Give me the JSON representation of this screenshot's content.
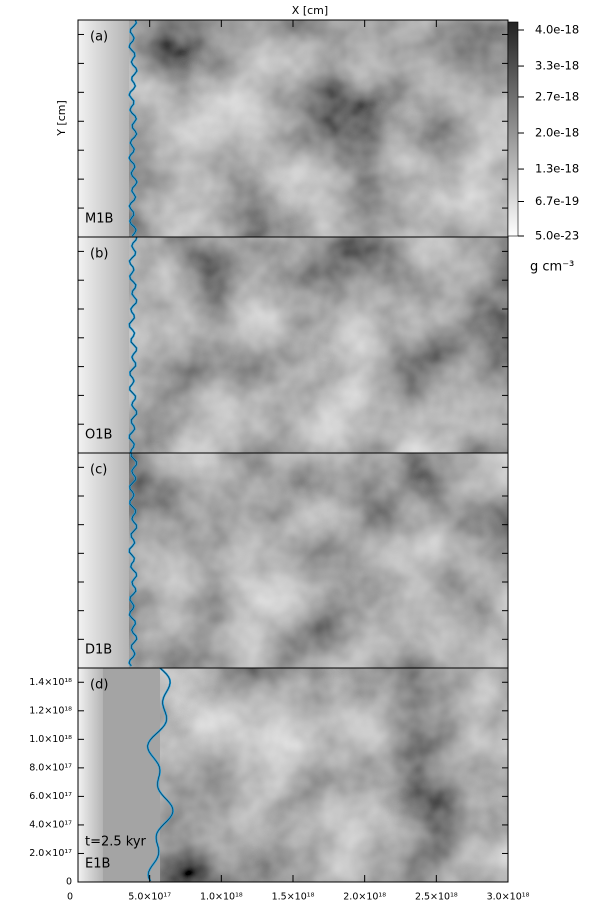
{
  "chart_data": {
    "type": "image",
    "xlabel": "X [cm]",
    "ylabel": "Y [cm]",
    "xlim": [
      0,
      3e+18
    ],
    "xticks": [
      0,
      {
        "value": 5e+17,
        "label": "5.0×10¹⁷"
      },
      {
        "value": 1e+18,
        "label": "1.0×10¹⁸"
      },
      {
        "value": 1.5e+18,
        "label": "1.5×10¹⁸"
      },
      {
        "value": 2e+18,
        "label": "2.0×10¹⁸"
      },
      {
        "value": 2.5e+18,
        "label": "2.5×10¹⁸"
      },
      {
        "value": 3e+18,
        "label": "3.0×10¹⁸"
      }
    ],
    "ylim": [
      0,
      1.5e+18
    ],
    "yticks": [
      0,
      {
        "value": 2e+17,
        "label": "2.0×10¹⁷"
      },
      {
        "value": 4e+17,
        "label": "4.0×10¹⁷"
      },
      {
        "value": 6e+17,
        "label": "6.0×10¹⁷"
      },
      {
        "value": 8e+17,
        "label": "8.0×10¹⁷"
      },
      {
        "value": 1e+18,
        "label": "1.0×10¹⁸"
      },
      {
        "value": 1.2e+18,
        "label": "1.2×10¹⁸"
      },
      {
        "value": 1.4e+18,
        "label": "1.4×10¹⁸"
      }
    ],
    "panels": [
      {
        "label": "(a)",
        "name": "M1B"
      },
      {
        "label": "(b)",
        "name": "O1B"
      },
      {
        "label": "(c)",
        "name": "D1B"
      },
      {
        "label": "(d)",
        "name": "E1B",
        "time": "t=2.5 kyr"
      }
    ],
    "colorbar": {
      "label": "g cm⁻³",
      "lim": [
        5e-23,
        4e-18
      ],
      "ticks": [
        {
          "value": 4e-18,
          "label": "4.0e-18"
        },
        {
          "value": 3.3e-18,
          "label": "3.3e-18"
        },
        {
          "value": 2.7e-18,
          "label": "2.7e-18"
        },
        {
          "value": 2e-18,
          "label": "2.0e-18"
        },
        {
          "value": 1.3e-18,
          "label": "1.3e-18"
        },
        {
          "value": 6.7e-19,
          "label": "6.7e-19"
        },
        {
          "value": 5e-23,
          "label": "5.0e-23"
        }
      ]
    }
  }
}
